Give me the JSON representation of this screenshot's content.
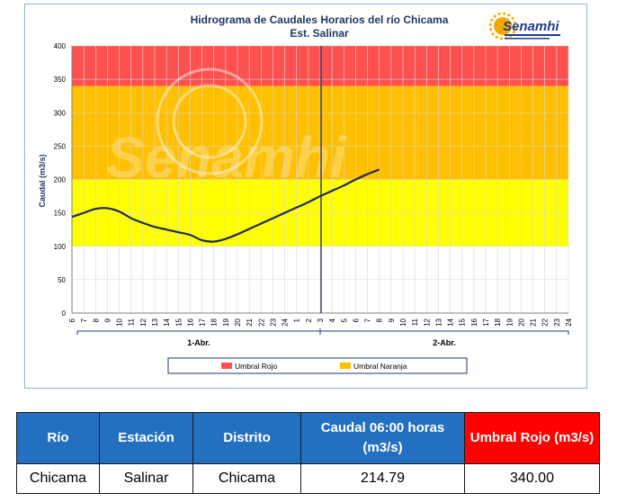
{
  "chart_data": {
    "type": "line",
    "title": "Hidrograma de Caudales Horarios del río Chicama",
    "subtitle": "Est. Salinar",
    "ylabel": "Caudal  (m3/s)",
    "ylim": [
      0,
      400
    ],
    "yticks": [
      0,
      50,
      100,
      150,
      200,
      250,
      300,
      350,
      400
    ],
    "x_ticks": [
      "6",
      "7",
      "8",
      "9",
      "10",
      "11",
      "12",
      "13",
      "14",
      "15",
      "16",
      "17",
      "18",
      "19",
      "20",
      "21",
      "22",
      "23",
      "24",
      "1",
      "2",
      "3",
      "4",
      "5",
      "6",
      "7",
      "8",
      "9",
      "10",
      "11",
      "12",
      "13",
      "14",
      "15",
      "16",
      "17",
      "18",
      "19",
      "20",
      "21",
      "22",
      "23",
      "24"
    ],
    "day_labels": [
      "1-Abr.",
      "2-Abr."
    ],
    "series": [
      {
        "points": [
          [
            0,
            144
          ],
          [
            1,
            150
          ],
          [
            2,
            156
          ],
          [
            3,
            157
          ],
          [
            4,
            152
          ],
          [
            5,
            142
          ],
          [
            6,
            135
          ],
          [
            7,
            129
          ],
          [
            8,
            125
          ],
          [
            9,
            121
          ],
          [
            10,
            117
          ],
          [
            11,
            109
          ],
          [
            12,
            107
          ],
          [
            13,
            111
          ],
          [
            14,
            118
          ],
          [
            15,
            126
          ],
          [
            16,
            134
          ],
          [
            17,
            142
          ],
          [
            18,
            150
          ],
          [
            19,
            158
          ],
          [
            20,
            166
          ],
          [
            21,
            175
          ],
          [
            22,
            183
          ],
          [
            23,
            191
          ],
          [
            24,
            200
          ],
          [
            25,
            208
          ],
          [
            26,
            215
          ]
        ]
      }
    ],
    "bands": [
      {
        "from": 100,
        "to": 200,
        "color": "#ffff00"
      },
      {
        "from": 200,
        "to": 340,
        "color": "#ffc000"
      },
      {
        "from": 340,
        "to": 400,
        "color": "#ff5050"
      }
    ],
    "current_time_index": 21,
    "legend": [
      {
        "label": "Umbral Rojo",
        "color": "#ff5050"
      },
      {
        "label": "Umbral Naranja",
        "color": "#ffc000"
      }
    ],
    "line_color": "#1f2a5c"
  },
  "logo": {
    "text": "Senamhi",
    "watermark": "Senamhi"
  },
  "table": {
    "headers": [
      "Río",
      "Estación",
      "Distrito",
      "Caudal  06:00 horas (m3/s)",
      "Umbral Rojo (m3/s)"
    ],
    "rows": [
      [
        "Chicama",
        "Salinar",
        "Chicama",
        "214.79",
        "340.00"
      ]
    ]
  }
}
